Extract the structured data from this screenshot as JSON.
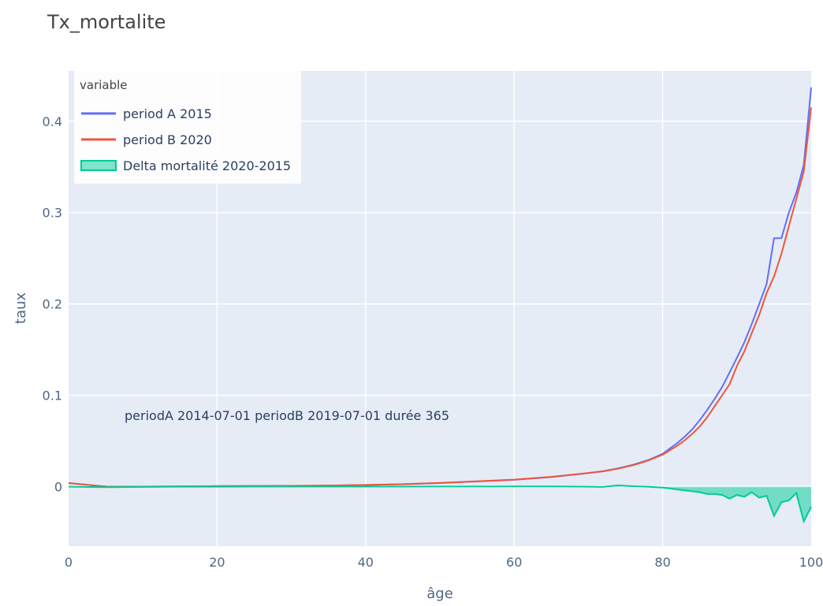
{
  "chart_data": {
    "type": "line",
    "title": "Tx_mortalite",
    "xlabel": "âge",
    "ylabel": "taux",
    "xlim": [
      0,
      100
    ],
    "ylim": [
      -0.065,
      0.455
    ],
    "xticks": [
      0,
      20,
      40,
      60,
      80,
      100
    ],
    "yticks": [
      0,
      0.1,
      0.2,
      0.3,
      0.4
    ],
    "grid": true,
    "legend": {
      "title": "variable",
      "placement": "top-left"
    },
    "annotation": "periodA 2014-07-01 periodB 2019-07-01 durée 365",
    "x": [
      0,
      5,
      10,
      15,
      20,
      25,
      30,
      35,
      40,
      45,
      50,
      55,
      60,
      65,
      70,
      72,
      74,
      76,
      78,
      80,
      81,
      82,
      83,
      84,
      85,
      86,
      87,
      88,
      89,
      90,
      91,
      92,
      93,
      94,
      95,
      96,
      97,
      98,
      99,
      100
    ],
    "series": [
      {
        "name": "period A 2015",
        "color": "#636efa",
        "mode": "line",
        "values": [
          0.004,
          0.0002,
          0.0001,
          0.0003,
          0.0006,
          0.0007,
          0.0009,
          0.0012,
          0.0018,
          0.0027,
          0.004,
          0.0058,
          0.0075,
          0.0105,
          0.015,
          0.017,
          0.02,
          0.024,
          0.029,
          0.036,
          0.042,
          0.048,
          0.055,
          0.063,
          0.073,
          0.084,
          0.096,
          0.109,
          0.125,
          0.141,
          0.158,
          0.178,
          0.2,
          0.222,
          0.272,
          0.272,
          0.3,
          0.322,
          0.352,
          0.437
        ]
      },
      {
        "name": "period B 2020",
        "color": "#ef553b",
        "mode": "line",
        "values": [
          0.004,
          0.0002,
          0.0001,
          0.0003,
          0.0006,
          0.0008,
          0.001,
          0.0013,
          0.0019,
          0.0028,
          0.0042,
          0.006,
          0.0078,
          0.0108,
          0.015,
          0.0168,
          0.0198,
          0.0235,
          0.0285,
          0.035,
          0.04,
          0.045,
          0.051,
          0.058,
          0.066,
          0.076,
          0.088,
          0.1,
          0.112,
          0.132,
          0.148,
          0.168,
          0.188,
          0.212,
          0.23,
          0.255,
          0.285,
          0.315,
          0.345,
          0.415
        ]
      },
      {
        "name": "Delta mortalité 2020-2015",
        "color": "#00cc96",
        "mode": "area",
        "values": [
          0,
          -0.0005,
          -0.0002,
          0,
          0,
          0.0001,
          0.0001,
          0.0001,
          0.0001,
          0.0001,
          0.0002,
          0.0002,
          0.0003,
          0.0003,
          0,
          -0.0002,
          0.0015,
          0.0005,
          0,
          -0.001,
          -0.002,
          -0.003,
          -0.004,
          -0.005,
          -0.006,
          -0.008,
          -0.008,
          -0.009,
          -0.013,
          -0.009,
          -0.011,
          -0.006,
          -0.012,
          -0.01,
          -0.032,
          -0.017,
          -0.015,
          -0.007,
          -0.038,
          -0.022
        ]
      }
    ]
  }
}
